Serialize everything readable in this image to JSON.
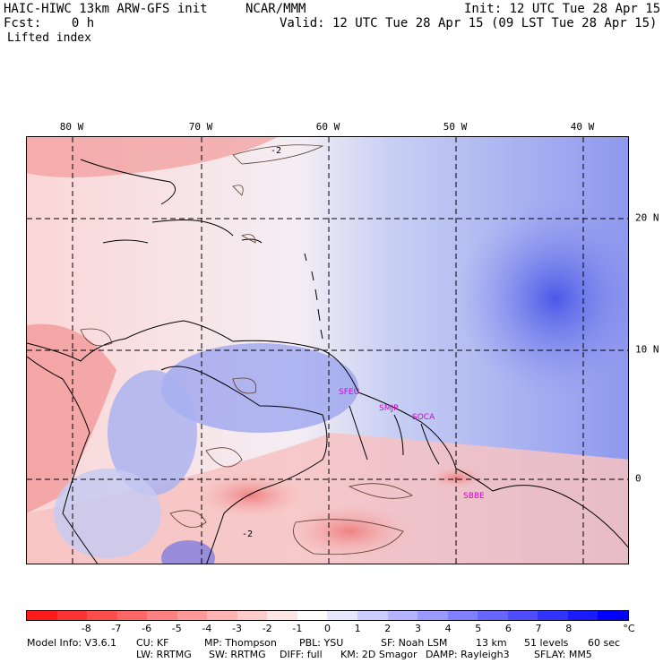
{
  "header": {
    "model_title": "HAIC-HIWC 13km ARW-GFS init",
    "org": "NCAR/MMM",
    "init": "Init: 12 UTC Tue 28 Apr 15",
    "fcst": "Fcst:    0 h",
    "valid": "Valid: 12 UTC Tue 28 Apr 15 (09 LST Tue 28 Apr 15)",
    "field": "Lifted index"
  },
  "map": {
    "lon_labels": [
      "80 W",
      "70 W",
      "60 W",
      "50 W",
      "40 W"
    ],
    "lat_labels": [
      "20 N",
      "10 N",
      "0"
    ],
    "contour_labels": [
      "-2",
      "-2"
    ],
    "sites": [
      "SFEU",
      "SMJP",
      "SOCA",
      "SBBE"
    ],
    "colors": {
      "strong_negative": "#ff2020",
      "negative": "#f5a0a0",
      "near_zero": "#fbe8e8",
      "positive": "#b0b8f0",
      "strong_positive": "#3040e0"
    }
  },
  "colorbar": {
    "labels": [
      "-8",
      "-7",
      "-6",
      "-5",
      "-4",
      "-3",
      "-2",
      "-1",
      "0",
      "1",
      "2",
      "3",
      "4",
      "5",
      "6",
      "7",
      "8"
    ],
    "unit": "°C",
    "colors": [
      "#ff1a1a",
      "#ff3333",
      "#ff4d4d",
      "#ff6666",
      "#ff8080",
      "#ff9999",
      "#ffb3b3",
      "#ffcccc",
      "#ffe6e6",
      "#ffffff",
      "#e6e6ff",
      "#ccccff",
      "#b3b3ff",
      "#9999ff",
      "#8080ff",
      "#6666ff",
      "#4d4dff",
      "#3333ff",
      "#1a1aff",
      "#0000ff"
    ]
  },
  "footer": {
    "line1": [
      "Model Info: V3.6.1",
      "CU: KF",
      "MP: Thompson",
      "PBL: YSU",
      "SF: Noah LSM",
      "13 km",
      "51 levels",
      "60 sec"
    ],
    "line2": [
      "LW: RRTMG",
      "SW: RRTMG",
      "DIFF: full",
      "KM: 2D Smagor",
      "DAMP: Rayleigh3",
      "SFLAY: MM5"
    ]
  }
}
